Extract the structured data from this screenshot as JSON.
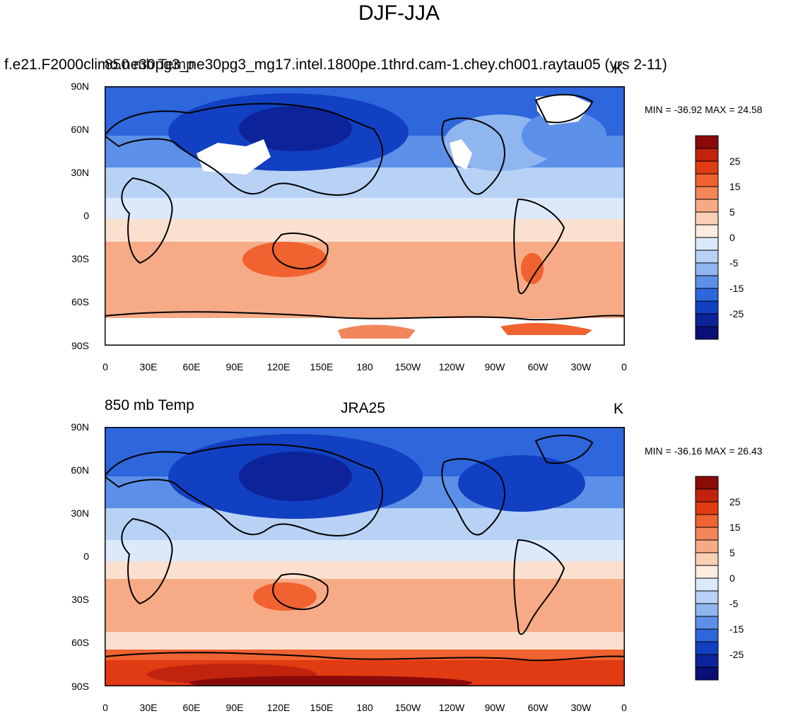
{
  "title": "DJF-JJA",
  "lat_labels": [
    "90N",
    "60N",
    "30N",
    "0",
    "30S",
    "60S",
    "90S"
  ],
  "lon_labels": [
    "0",
    "30E",
    "60E",
    "90E",
    "120E",
    "150E",
    "180",
    "150W",
    "120W",
    "90W",
    "60W",
    "30W",
    "0"
  ],
  "colorbar_labels": [
    "25",
    "15",
    "5",
    "0",
    "-5",
    "-15",
    "-25"
  ],
  "colorbar_colors": [
    "#8b0a0a",
    "#c1230e",
    "#e13b13",
    "#f0622f",
    "#f2855a",
    "#f6ab86",
    "#fad0b5",
    "#fdece0",
    "#dce9fb",
    "#b8d2f6",
    "#8fb6ef",
    "#5c90e8",
    "#2e66dc",
    "#1240c3",
    "#0c239a",
    "#0a0f78"
  ],
  "panels": [
    {
      "left_title_line1": "f.e21.F2000climo.ne30pg3_ne30pg3_mg17.intel.1800pe.1thrd.cam-1.chey.ch001.raytau05 (yrs 2-11)",
      "left_title_line2": "850 mb Temp",
      "units": "K",
      "minmax": "MIN = -36.92 MAX =  24.58"
    },
    {
      "left_title": "850 mb Temp",
      "center_title": "JRA25",
      "units": "K",
      "minmax": "MIN = -36.16 MAX =  26.43"
    }
  ]
}
